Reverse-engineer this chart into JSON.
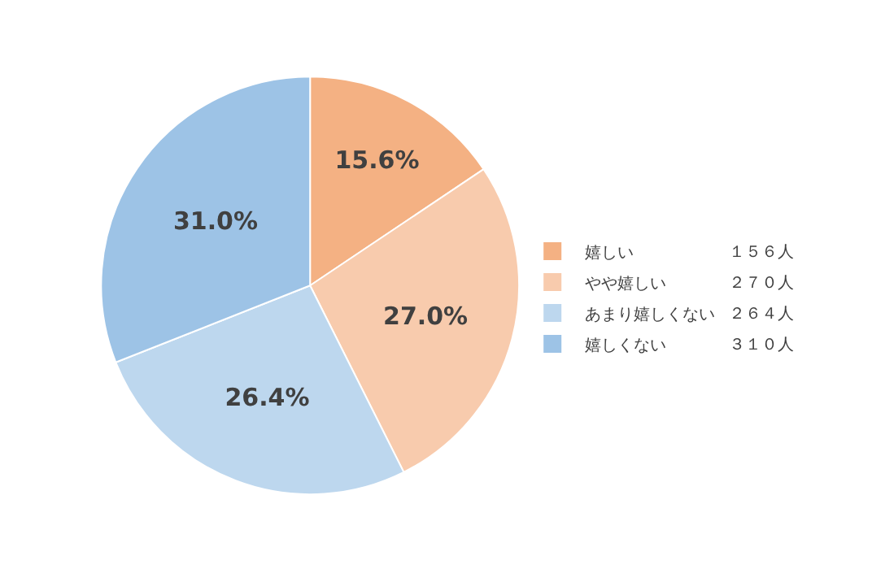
{
  "chart_data": {
    "type": "pie",
    "categories": [
      "嬉しい",
      "やや嬉しい",
      "あまり嬉しくない",
      "嬉しくない"
    ],
    "values": [
      15.6,
      27.0,
      26.4,
      31.0
    ],
    "value_labels": [
      "15.6%",
      "27.0%",
      "26.4%",
      "31.0%"
    ],
    "colors": [
      "#f4b183",
      "#f8cbad",
      "#bdd7ee",
      "#9dc3e6"
    ],
    "annotations": [
      "１５６人",
      "２７０人",
      "２６４人",
      "３１０人"
    ],
    "legend": "right"
  }
}
